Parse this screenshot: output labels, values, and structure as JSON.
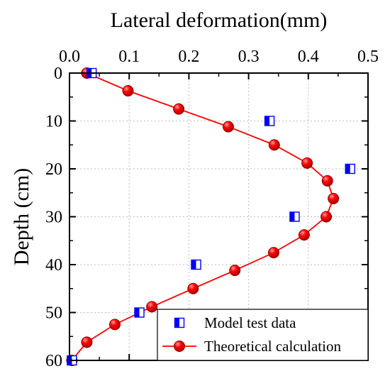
{
  "chart_data": {
    "type": "scatter",
    "xlabel": "Lateral deformation(mm)",
    "ylabel": "Depth (cm)",
    "xlim": [
      0,
      0.5
    ],
    "ylim": [
      0,
      60
    ],
    "x_ticks": [
      "0.0",
      "0.1",
      "0.2",
      "0.3",
      "0.4",
      "0.5"
    ],
    "y_ticks": [
      "0",
      "10",
      "20",
      "30",
      "40",
      "50",
      "60"
    ],
    "x_tick_values": [
      0,
      0.1,
      0.2,
      0.3,
      0.4,
      0.5
    ],
    "y_tick_values": [
      0,
      10,
      20,
      30,
      40,
      50,
      60
    ],
    "x_axis_position": "top",
    "y_axis_inverted": true,
    "grid": "dotted",
    "legend_position": "bottom-right",
    "series": [
      {
        "name": "Model test data",
        "marker": "half-filled-square",
        "color": "#0000ff",
        "x": [
          0.037,
          0.335,
          0.47,
          0.377,
          0.212,
          0.117,
          0.004
        ],
        "y": [
          0,
          10,
          20,
          30,
          40,
          50,
          60
        ]
      },
      {
        "name": "Theoretical calculation",
        "marker": "circle",
        "color": "#ff0000",
        "x": [
          0.029,
          0.098,
          0.183,
          0.266,
          0.343,
          0.398,
          0.432,
          0.442,
          0.43,
          0.393,
          0.342,
          0.277,
          0.207,
          0.138,
          0.076,
          0.029,
          0.004
        ],
        "y": [
          0,
          3.7,
          7.5,
          11.2,
          15.0,
          18.8,
          22.5,
          26.2,
          30.0,
          33.8,
          37.5,
          41.2,
          45.0,
          48.8,
          52.5,
          56.2,
          60
        ]
      }
    ]
  }
}
